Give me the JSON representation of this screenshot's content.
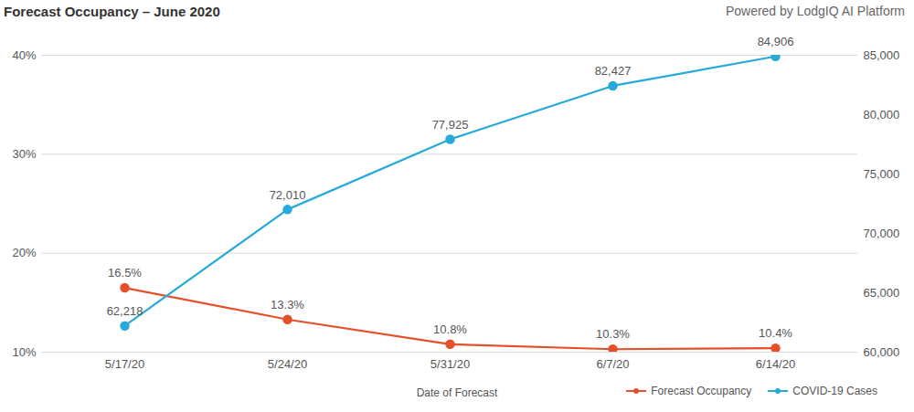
{
  "chart_data": {
    "type": "line",
    "title": "Forecast Occupancy – June 2020",
    "subtitle": "Powered by LodgIQ AI Platform",
    "x_label": "Date of Forecast",
    "categories": [
      "5/17/20",
      "5/24/20",
      "5/31/20",
      "6/7/20",
      "6/14/20"
    ],
    "series": [
      {
        "name": "Forecast Occupancy",
        "color": "#e5502b",
        "marker": "circle",
        "line_style": "solid",
        "values": [
          16.5,
          13.3,
          10.8,
          10.3,
          10.4
        ],
        "value_labels": [
          "16.5%",
          "13.3%",
          "10.8%",
          "10.3%",
          "10.4%"
        ]
      },
      {
        "name": "COVID-19 Cases",
        "color": "#27a9d9",
        "marker": "circle",
        "line_style": "solid",
        "axis": "y2",
        "values": [
          62218,
          72010,
          77925,
          82427,
          84906
        ],
        "value_labels": [
          "62,218",
          "72,010",
          "77,925",
          "82,427",
          "84,906"
        ]
      }
    ],
    "ylim": [
      10,
      40
    ],
    "yticks": [
      {
        "value": 10,
        "label": "10%"
      },
      {
        "value": 20,
        "label": "20%"
      },
      {
        "value": 30,
        "label": "30%"
      },
      {
        "value": 40,
        "label": "40%"
      }
    ],
    "y2lim": [
      60000,
      85000
    ],
    "y2ticks": [
      {
        "value": 60000,
        "label": "60,000"
      },
      {
        "value": 65000,
        "label": "65,000"
      },
      {
        "value": 70000,
        "label": "70,000"
      },
      {
        "value": 75000,
        "label": "75,000"
      },
      {
        "value": 80000,
        "label": "80,000"
      },
      {
        "value": 85000,
        "label": "85,000"
      }
    ],
    "grid": true,
    "legend": "bottom right",
    "data_labels": true
  }
}
